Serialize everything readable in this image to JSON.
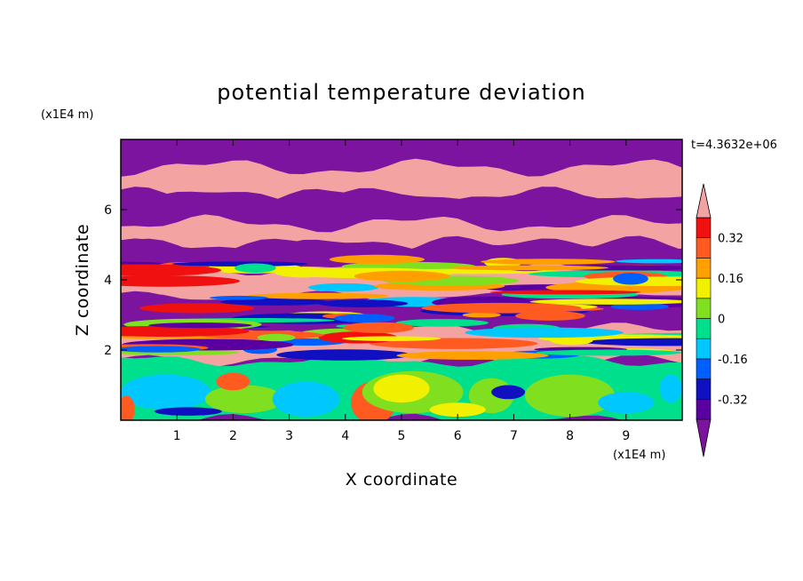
{
  "chart_data": {
    "type": "heatmap",
    "title": "potential temperature deviation",
    "xlabel": "X coordinate",
    "ylabel": "Z coordinate",
    "x_unit": "(x1E4 m)",
    "y_unit": "(x1E4 m)",
    "time_label": "t=4.3632e+06",
    "xlim": [
      0,
      10
    ],
    "ylim": [
      0,
      8
    ],
    "x_ticks": [
      "1",
      "2",
      "3",
      "4",
      "5",
      "6",
      "7",
      "8",
      "9"
    ],
    "y_ticks": [
      "2",
      "4",
      "6"
    ],
    "colorbar": {
      "levels": [
        -0.4,
        -0.32,
        -0.24,
        -0.16,
        -0.08,
        0,
        0.08,
        0.16,
        0.24,
        0.32,
        0.4
      ],
      "labels": [
        "0.32",
        "0.16",
        "0",
        "-0.16",
        "-0.32"
      ],
      "label_values": [
        0.32,
        0.16,
        0,
        -0.16,
        -0.32
      ],
      "over_color": "#f4a3a3",
      "under_color": "#7c14a0",
      "colors": [
        "#5b00a0",
        "#1010c0",
        "#0060ff",
        "#00c8ff",
        "#00e08c",
        "#80e020",
        "#f0f000",
        "#ffa000",
        "#ff5a20",
        "#f01010"
      ]
    },
    "bands": [
      {
        "z": [
          7.2,
          8.0
        ],
        "color": "#7c14a0"
      },
      {
        "z": [
          6.4,
          7.2
        ],
        "color": "#f4a3a3"
      },
      {
        "z": [
          5.6,
          6.4
        ],
        "color": "#7c14a0"
      },
      {
        "z": [
          5.0,
          5.6
        ],
        "color": "#f4a3a3"
      },
      {
        "z": [
          4.3,
          5.0
        ],
        "color": "#7c14a0"
      },
      {
        "z": [
          3.5,
          4.3
        ],
        "color": "#f4a3a3"
      },
      {
        "z": [
          2.6,
          3.5
        ],
        "color": "#7c14a0"
      },
      {
        "z": [
          1.7,
          2.6
        ],
        "color": "#f4a3a3"
      },
      {
        "z": [
          0.0,
          1.7
        ],
        "color": "#00e08c"
      }
    ]
  }
}
